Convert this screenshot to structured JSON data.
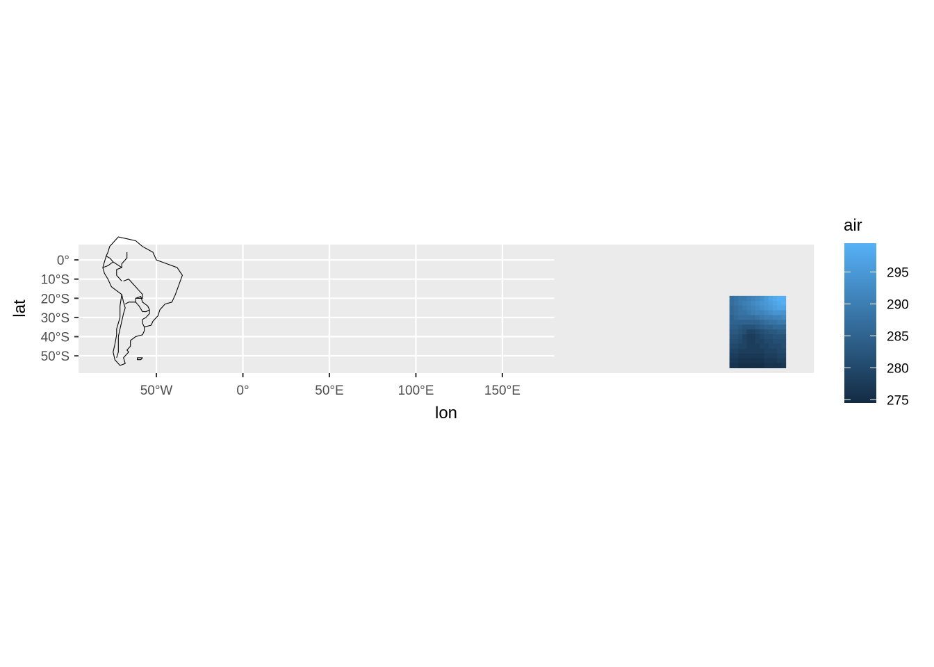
{
  "chart_data": {
    "type": "heatmap",
    "title": "",
    "xlabel": "lon",
    "ylabel": "lat",
    "x_ticks": [
      {
        "value": -50,
        "label": "50°W"
      },
      {
        "value": 0,
        "label": "0°"
      },
      {
        "value": 50,
        "label": "50°E"
      },
      {
        "value": 100,
        "label": "100°E"
      },
      {
        "value": 150,
        "label": "150°E"
      }
    ],
    "y_ticks": [
      {
        "value": 0,
        "label": "0°"
      },
      {
        "value": -10,
        "label": "10°S"
      },
      {
        "value": -20,
        "label": "20°S"
      },
      {
        "value": -30,
        "label": "30°S"
      },
      {
        "value": -40,
        "label": "40°S"
      },
      {
        "value": -50,
        "label": "50°S"
      }
    ],
    "xlim": [
      -95,
      330
    ],
    "ylim": [
      -59,
      8
    ],
    "grid_xlim": [
      -95,
      180
    ],
    "grid": true,
    "panel_background": "#ebebeb",
    "legend": {
      "title": "air",
      "position": "right",
      "range": [
        274.5,
        299.5
      ],
      "breaks": [
        275,
        280,
        285,
        290,
        295
      ],
      "low_color": "#132b43",
      "high_color": "#56b1f7"
    },
    "grid_x": [
      282.5,
      285,
      287.5,
      290,
      292.5,
      295,
      297.5,
      300,
      302.5,
      305,
      307.5,
      310,
      312.5
    ],
    "grid_y": [
      -20,
      -22.5,
      -25,
      -27.5,
      -30,
      -32.5,
      -35,
      -37.5,
      -40,
      -42.5,
      -45,
      -47.5,
      -50,
      -52.5,
      -55
    ],
    "values": [
      [
        287,
        288,
        289,
        289,
        290,
        291,
        292,
        293,
        295,
        297,
        298,
        299,
        299
      ],
      [
        287,
        288,
        289,
        290,
        291,
        292,
        293,
        294,
        295,
        296,
        297,
        298,
        299
      ],
      [
        286,
        287,
        288,
        289,
        290,
        291,
        292,
        293,
        294,
        295,
        296,
        297,
        297
      ],
      [
        286,
        287,
        288,
        288,
        289,
        290,
        291,
        291,
        292,
        293,
        294,
        294,
        294
      ],
      [
        285,
        286,
        287,
        287,
        287,
        287,
        288,
        289,
        290,
        290,
        291,
        291,
        292
      ],
      [
        285,
        285,
        285,
        285,
        285,
        285,
        285,
        286,
        287,
        288,
        288,
        289,
        289
      ],
      [
        284,
        284,
        283,
        282,
        282,
        282,
        283,
        284,
        285,
        285,
        286,
        286,
        286
      ],
      [
        283,
        283,
        282,
        281,
        279,
        279,
        280,
        281,
        282,
        283,
        283,
        284,
        284
      ],
      [
        282,
        282,
        281,
        279,
        278,
        278,
        279,
        280,
        281,
        281,
        282,
        282,
        282
      ],
      [
        281,
        281,
        280,
        279,
        278,
        278,
        279,
        279,
        280,
        280,
        281,
        281,
        281
      ],
      [
        280,
        280,
        279,
        279,
        278,
        278,
        278,
        279,
        279,
        280,
        280,
        280,
        281
      ],
      [
        279,
        279,
        278,
        278,
        278,
        278,
        278,
        278,
        279,
        279,
        279,
        280,
        280
      ],
      [
        278,
        278,
        277,
        277,
        277,
        277,
        277,
        277,
        278,
        278,
        278,
        279,
        279
      ],
      [
        277,
        277,
        276,
        276,
        276,
        276,
        276,
        276,
        277,
        277,
        277,
        278,
        278
      ],
      [
        276,
        276,
        275,
        275,
        275,
        275,
        275,
        275,
        276,
        276,
        276,
        276,
        277
      ]
    ],
    "map_outline": {
      "region": "South America",
      "color": "#000000",
      "coast": [
        [
          -77,
          7
        ],
        [
          -72,
          12
        ],
        [
          -67,
          11
        ],
        [
          -62,
          10
        ],
        [
          -58,
          7
        ],
        [
          -52,
          4
        ],
        [
          -50,
          0
        ],
        [
          -44,
          -2
        ],
        [
          -38,
          -4
        ],
        [
          -35,
          -8
        ],
        [
          -37,
          -13
        ],
        [
          -39,
          -18
        ],
        [
          -41,
          -22
        ],
        [
          -45,
          -23
        ],
        [
          -48,
          -26
        ],
        [
          -49,
          -29
        ],
        [
          -52,
          -32
        ],
        [
          -53,
          -34
        ],
        [
          -57,
          -35
        ],
        [
          -57,
          -37
        ],
        [
          -58,
          -39
        ],
        [
          -62,
          -40
        ],
        [
          -65,
          -42
        ],
        [
          -65,
          -45
        ],
        [
          -67,
          -47
        ],
        [
          -66,
          -48
        ],
        [
          -69,
          -51
        ],
        [
          -68,
          -54
        ],
        [
          -71,
          -55
        ],
        [
          -74,
          -52
        ],
        [
          -75,
          -48
        ],
        [
          -74,
          -44
        ],
        [
          -73,
          -39
        ],
        [
          -73,
          -36
        ],
        [
          -71,
          -30
        ],
        [
          -71,
          -24
        ],
        [
          -70,
          -18
        ],
        [
          -73,
          -16
        ],
        [
          -76,
          -14
        ],
        [
          -78,
          -10
        ],
        [
          -80,
          -7
        ],
        [
          -81,
          -4
        ],
        [
          -80,
          -1
        ],
        [
          -79,
          2
        ],
        [
          -78,
          4
        ],
        [
          -77,
          7
        ]
      ],
      "borders": [
        [
          [
            -70,
            -18
          ],
          [
            -69,
            -22
          ],
          [
            -68,
            -25
          ],
          [
            -69,
            -28
          ],
          [
            -70,
            -32
          ],
          [
            -71,
            -36
          ],
          [
            -72,
            -40
          ],
          [
            -72,
            -44
          ],
          [
            -72,
            -48
          ],
          [
            -73,
            -51
          ]
        ],
        [
          [
            -69,
            -11
          ],
          [
            -66,
            -10
          ],
          [
            -62,
            -14
          ],
          [
            -60,
            -16
          ],
          [
            -58,
            -18
          ],
          [
            -58,
            -20
          ],
          [
            -62,
            -20
          ],
          [
            -62,
            -22
          ],
          [
            -66,
            -22
          ],
          [
            -68,
            -23
          ]
        ],
        [
          [
            -62,
            -20
          ],
          [
            -59,
            -19
          ],
          [
            -58,
            -22
          ],
          [
            -55,
            -24
          ],
          [
            -54,
            -26
          ],
          [
            -56,
            -27
          ],
          [
            -58,
            -27
          ],
          [
            -60,
            -24
          ],
          [
            -62,
            -22
          ]
        ],
        [
          [
            -54,
            -26
          ],
          [
            -54,
            -28
          ],
          [
            -56,
            -30
          ],
          [
            -58,
            -31
          ],
          [
            -58,
            -33
          ],
          [
            -57,
            -35
          ]
        ],
        [
          [
            -75,
            -1
          ],
          [
            -70,
            -4
          ],
          [
            -70,
            -2
          ],
          [
            -67,
            1
          ],
          [
            -67,
            4
          ]
        ],
        [
          [
            -81,
            -4
          ],
          [
            -78,
            -3
          ],
          [
            -75,
            -1
          ],
          [
            -77,
            1
          ],
          [
            -79,
            2
          ]
        ],
        [
          [
            -70,
            -11
          ],
          [
            -73,
            -8
          ],
          [
            -73,
            -5
          ],
          [
            -70,
            -4
          ]
        ]
      ],
      "islands": [
        [
          [
            -61,
            -51
          ],
          [
            -58,
            -51
          ],
          [
            -59,
            -52
          ],
          [
            -61,
            -52
          ],
          [
            -61,
            -51
          ]
        ]
      ]
    }
  }
}
